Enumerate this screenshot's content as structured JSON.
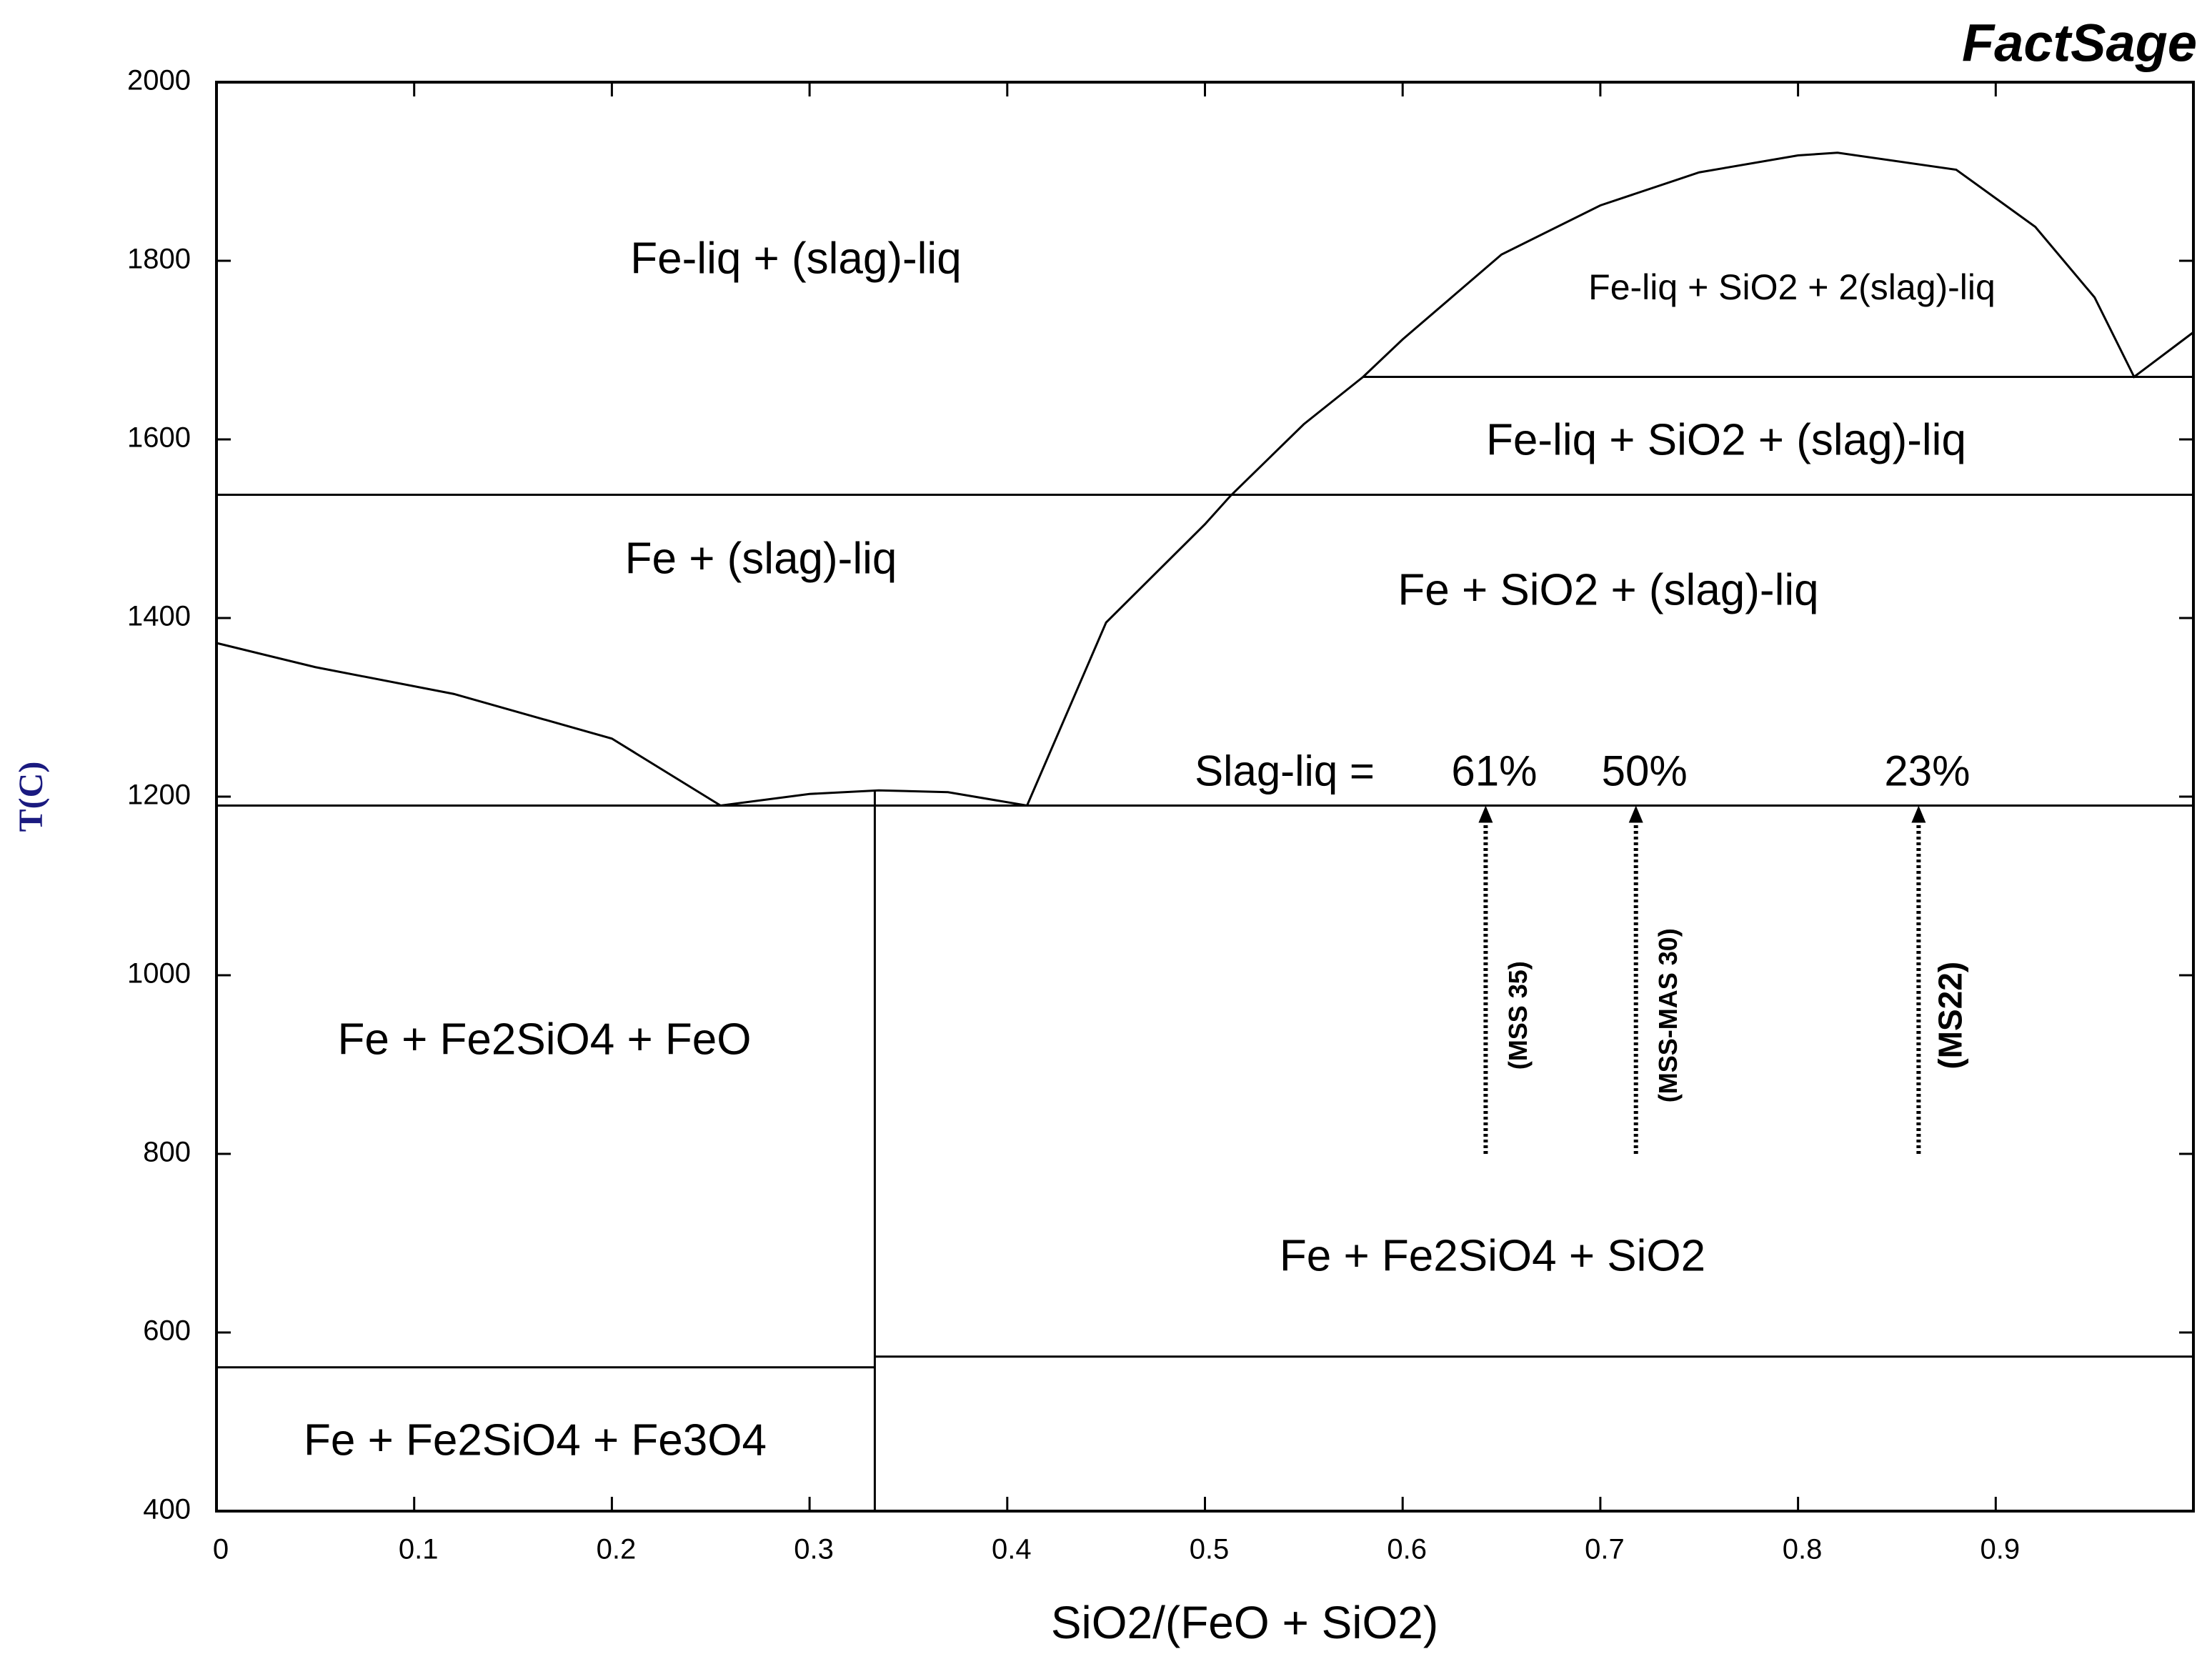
{
  "chart_data": {
    "type": "phase-diagram",
    "brand": "FactSage",
    "xlabel": "SiO2/(FeO + SiO2)",
    "ylabel": "T(C)",
    "xlim": [
      0,
      1
    ],
    "ylim": [
      400,
      2000
    ],
    "xticks": [
      0,
      0.1,
      0.2,
      0.3,
      0.4,
      0.5,
      0.6,
      0.7,
      0.8,
      0.9
    ],
    "yticks": [
      400,
      600,
      800,
      1000,
      1200,
      1400,
      1600,
      1800,
      2000
    ],
    "line_color": "#000000",
    "lines": [
      {
        "x": [
          0,
          0.05,
          0.12,
          0.2,
          0.255
        ],
        "y": [
          1372,
          1345,
          1315,
          1265,
          1190
        ]
      },
      {
        "x": [
          0.255,
          0.3,
          0.335,
          0.37,
          0.41
        ],
        "y": [
          1190,
          1203,
          1207,
          1205,
          1190
        ]
      },
      {
        "x": [
          0.41,
          0.45,
          0.5,
          0.513,
          0.55,
          0.58,
          0.6,
          0.65,
          0.7,
          0.75,
          0.8,
          0.82,
          0.88,
          0.92,
          0.95,
          0.97,
          1.0
        ],
        "y": [
          1190,
          1395,
          1505,
          1537,
          1617,
          1670,
          1712,
          1807,
          1862,
          1899,
          1918,
          1921,
          1902,
          1838,
          1759,
          1670,
          1720
        ]
      },
      {
        "x": [
          0.58,
          1.0
        ],
        "y": [
          1670,
          1670
        ]
      },
      {
        "x": [
          0,
          1.0
        ],
        "y": [
          1538,
          1538
        ]
      },
      {
        "x": [
          0,
          1.0
        ],
        "y": [
          1190,
          1190
        ]
      },
      {
        "x": [
          0,
          0.333
        ],
        "y": [
          561,
          561
        ]
      },
      {
        "x": [
          0.333,
          1.0
        ],
        "y": [
          573,
          573
        ]
      },
      {
        "x": [
          0.333,
          0.333
        ],
        "y": [
          400,
          1207
        ]
      }
    ],
    "regions": [
      "Fe-liq + (slag)-liq",
      "Fe-liq + SiO2 + 2(slag)-liq",
      "Fe-liq + SiO2 + (slag)-liq",
      "Fe + (slag)-liq",
      "Fe + SiO2 + (slag)-liq",
      "Fe + Fe2SiO4 + FeO",
      "Fe + Fe2SiO4 + SiO2",
      "Fe + Fe2SiO4 + Fe3O4"
    ],
    "slag_liq_label": "Slag-liq =",
    "samples": [
      {
        "name": "(MSS 35)",
        "x": 0.642,
        "y_from": 800,
        "y_to": 1190,
        "slag_liq": "61%"
      },
      {
        "name": "(MSS-MAS 30)",
        "x": 0.718,
        "y_from": 800,
        "y_to": 1190,
        "slag_liq": "50%"
      },
      {
        "name": "(MS22)",
        "x": 0.861,
        "y_from": 800,
        "y_to": 1190,
        "slag_liq": "23%"
      }
    ]
  }
}
